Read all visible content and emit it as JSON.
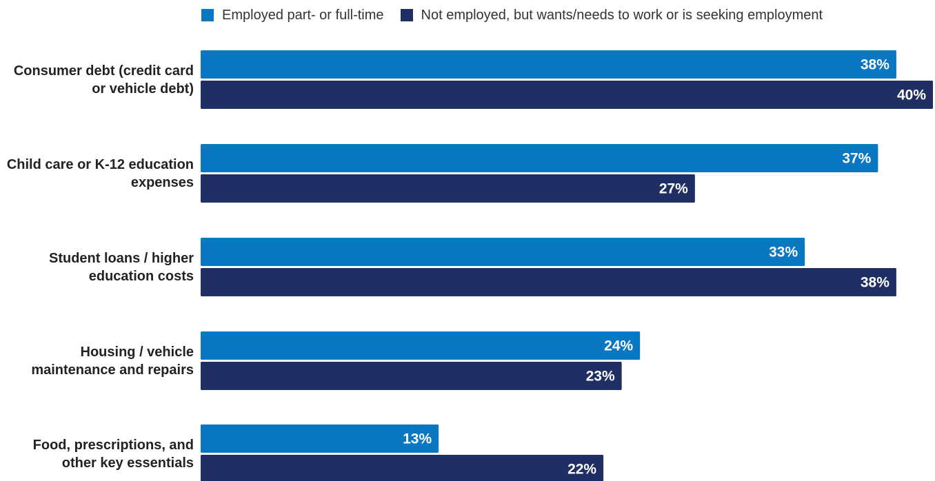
{
  "legend": {
    "series_0": "Employed part- or full-time",
    "series_1": "Not employed, but wants/needs to work or is seeking employment"
  },
  "colors": {
    "series_0": "#0a77c2",
    "series_1": "#1f2f63"
  },
  "chart_data": {
    "type": "bar",
    "orientation": "horizontal",
    "categories": [
      "Consumer debt (credit card or vehicle debt)",
      "Child care or K-12 education expenses",
      "Student loans / higher education costs",
      "Housing / vehicle maintenance and repairs",
      "Food, prescriptions, and other key essentials"
    ],
    "category_lines": [
      [
        "Consumer debt (credit card",
        "or vehicle debt)"
      ],
      [
        "Child care or K-12 education",
        "expenses"
      ],
      [
        "Student loans / higher",
        "education costs"
      ],
      [
        "Housing / vehicle",
        "maintenance and repairs"
      ],
      [
        "Food, prescriptions, and",
        "other key essentials"
      ]
    ],
    "series": [
      {
        "name": "Employed part- or full-time",
        "values": [
          38,
          37,
          33,
          24,
          13
        ],
        "labels": [
          "38%",
          "37%",
          "33%",
          "24%",
          "13%"
        ]
      },
      {
        "name": "Not employed, but wants/needs to work or is seeking employment",
        "values": [
          40,
          27,
          38,
          23,
          22
        ],
        "labels": [
          "40%",
          "27%",
          "38%",
          "23%",
          "22%"
        ]
      }
    ],
    "xlim": [
      0,
      40
    ],
    "grid": false,
    "legend_position": "top",
    "title": "",
    "xlabel": "",
    "ylabel": ""
  }
}
